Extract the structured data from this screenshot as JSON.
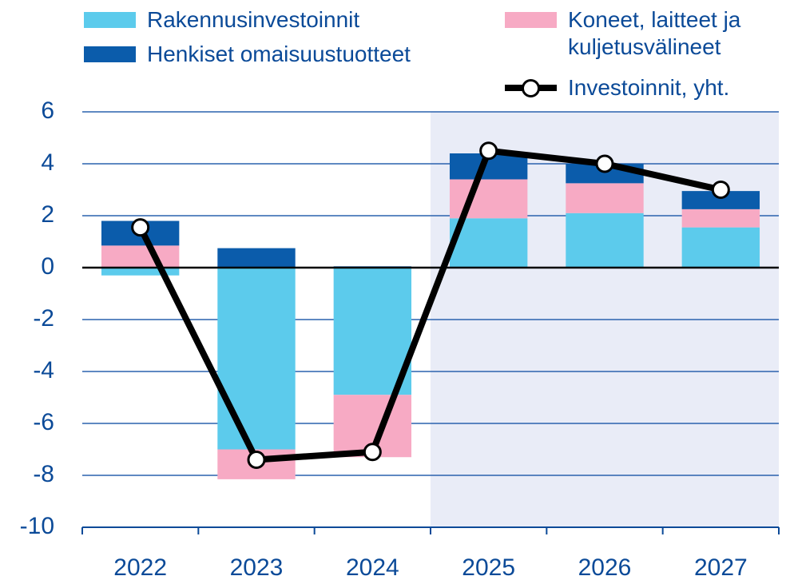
{
  "chart_data": {
    "type": "bar",
    "categories": [
      "2022",
      "2023",
      "2024",
      "2025",
      "2026",
      "2027"
    ],
    "series": [
      {
        "name": "Rakennusinvestoinnit",
        "color": "#5ccbec",
        "values": [
          -0.3,
          -7.0,
          -4.9,
          1.9,
          2.1,
          1.55
        ]
      },
      {
        "name": "Koneet, laitteet ja kuljetusvälineet",
        "color": "#f7aac4",
        "values": [
          0.85,
          -1.15,
          -2.4,
          1.5,
          1.15,
          0.7
        ]
      },
      {
        "name": "Henkiset omaisuustuotteet",
        "color": "#0b5cab",
        "values": [
          0.95,
          0.75,
          0.05,
          1.0,
          0.75,
          0.7
        ]
      },
      {
        "name": "Investoinnit, yht.",
        "type": "line",
        "color": "#000000",
        "values": [
          1.55,
          -7.4,
          -7.1,
          4.5,
          4.0,
          3.0
        ]
      }
    ],
    "ylim": [
      -10,
      6
    ],
    "yticks": [
      -10,
      -8,
      -6,
      -4,
      -2,
      0,
      2,
      4,
      6
    ],
    "grid": true,
    "shade_from": "2025",
    "shade_color": "#e9ecf7"
  }
}
